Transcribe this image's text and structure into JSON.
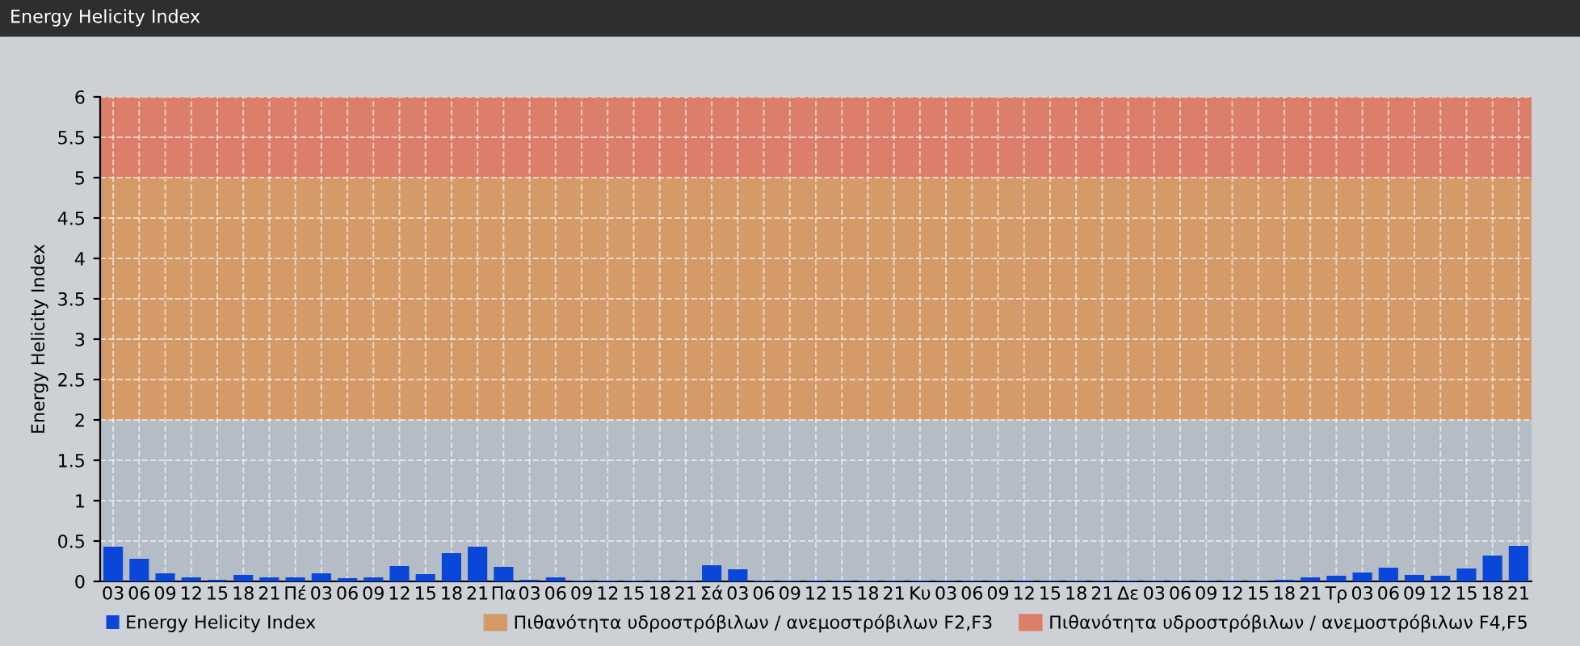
{
  "chart_data": {
    "type": "bar",
    "title": "Energy Helicity Index",
    "ylabel": "Energy Helicity Index",
    "categories": [
      "03",
      "06",
      "09",
      "12",
      "15",
      "18",
      "21",
      "Πέ",
      "03",
      "06",
      "09",
      "12",
      "15",
      "18",
      "21",
      "Πα",
      "03",
      "06",
      "09",
      "12",
      "15",
      "18",
      "21",
      "Σά",
      "03",
      "06",
      "09",
      "12",
      "15",
      "18",
      "21",
      "Κυ",
      "03",
      "06",
      "09",
      "12",
      "15",
      "18",
      "21",
      "Δε",
      "03",
      "06",
      "09",
      "12",
      "15",
      "18",
      "21",
      "Τρ",
      "03",
      "06",
      "09",
      "12",
      "15",
      "18",
      "21"
    ],
    "series": [
      {
        "name": "Energy Helicity Index",
        "color": "#0a47d8",
        "values": [
          0.43,
          0.28,
          0.1,
          0.05,
          0.02,
          0.08,
          0.05,
          0.05,
          0.1,
          0.04,
          0.05,
          0.19,
          0.09,
          0.35,
          0.43,
          0.18,
          0.02,
          0.05,
          0.01,
          0.01,
          0.01,
          0.01,
          0.01,
          0.2,
          0.15,
          0.01,
          0.01,
          0.01,
          0.01,
          0.01,
          0.01,
          0.01,
          0.01,
          0.01,
          0.01,
          0.01,
          0.01,
          0.01,
          0.01,
          0.01,
          0.01,
          0.01,
          0.01,
          0.01,
          0.01,
          0.02,
          0.05,
          0.07,
          0.11,
          0.17,
          0.08,
          0.07,
          0.16,
          0.32,
          0.44
        ]
      }
    ],
    "ylim": [
      0,
      6
    ],
    "yticks": [
      0,
      0.5,
      1,
      1.5,
      2,
      2.5,
      3,
      3.5,
      4,
      4.5,
      5,
      5.5,
      6
    ],
    "bands": [
      {
        "axis": "y",
        "from": 0,
        "to": 2,
        "label": null,
        "color": "#b4bcc6"
      },
      {
        "axis": "y",
        "from": 2,
        "to": 5,
        "label": "Πιθανότητα υδροστρόβιλων / ανεμοστρόβιλων F2,F3",
        "color": "#d49a68"
      },
      {
        "axis": "y",
        "from": 5,
        "to": 6,
        "label": "Πιθανότητα υδροστρόβιλων / ανεμοστρόβιλων F4,F5",
        "color": "#dc7f6a"
      }
    ],
    "grid": true,
    "legend": "bottom left"
  }
}
